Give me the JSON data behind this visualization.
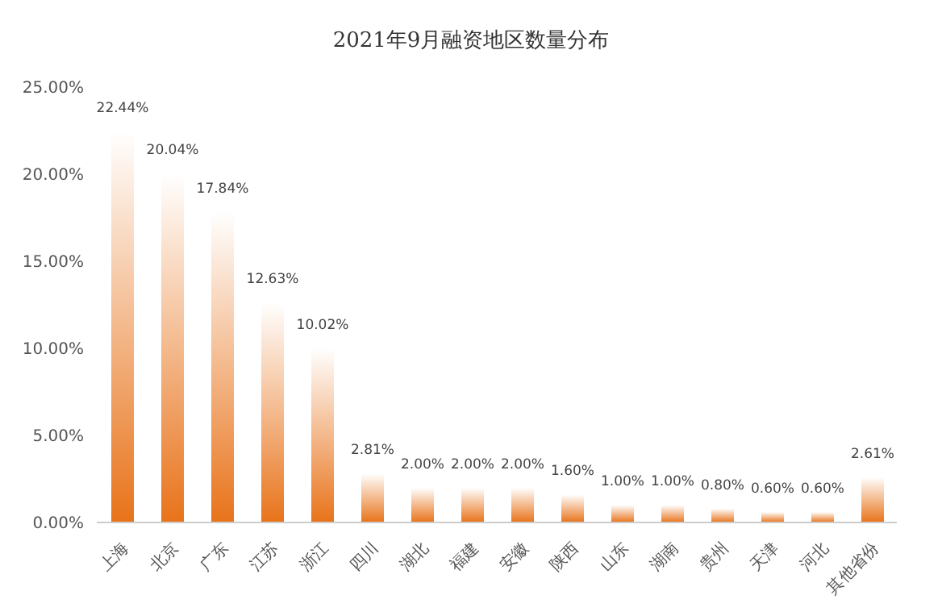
{
  "chart_data": {
    "type": "bar",
    "title": "2021年9月融资地区数量分布",
    "categories": [
      "上海",
      "北京",
      "广东",
      "江苏",
      "浙江",
      "四川",
      "湖北",
      "福建",
      "安徽",
      "陕西",
      "山东",
      "湖南",
      "贵州",
      "天津",
      "河北",
      "其他省份"
    ],
    "values": [
      22.44,
      20.04,
      17.84,
      12.63,
      10.02,
      2.81,
      2.0,
      2.0,
      2.0,
      1.6,
      1.0,
      1.0,
      0.8,
      0.6,
      0.6,
      2.61
    ],
    "value_labels": [
      "22.44%",
      "20.04%",
      "17.84%",
      "12.63%",
      "10.02%",
      "2.81%",
      "2.00%",
      "2.00%",
      "2.00%",
      "1.60%",
      "1.00%",
      "1.00%",
      "0.80%",
      "0.60%",
      "0.60%",
      "2.61%"
    ],
    "color": "#e8731a",
    "ylim": [
      0,
      25
    ],
    "yticks": [
      {
        "value": 0,
        "label": "0.00%"
      },
      {
        "value": 5,
        "label": "5.00%"
      },
      {
        "value": 10,
        "label": "10.00%"
      },
      {
        "value": 15,
        "label": "15.00%"
      },
      {
        "value": 20,
        "label": "20.00%"
      },
      {
        "value": 25,
        "label": "25.00%"
      }
    ],
    "grid": false,
    "legend": false
  }
}
